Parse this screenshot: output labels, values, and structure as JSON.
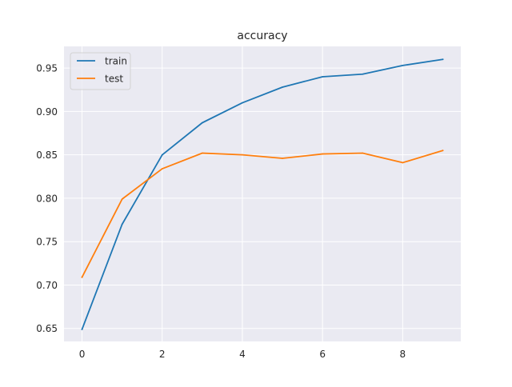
{
  "chart_data": {
    "type": "line",
    "title": "accuracy",
    "xlabel": "",
    "ylabel": "",
    "x": [
      0,
      1,
      2,
      3,
      4,
      5,
      6,
      7,
      8,
      9
    ],
    "xlim": [
      -0.45,
      9.45
    ],
    "ylim": [
      0.635,
      0.975
    ],
    "x_ticks": [
      0,
      2,
      4,
      6,
      8
    ],
    "x_tick_labels": [
      "0",
      "2",
      "4",
      "6",
      "8"
    ],
    "y_ticks": [
      0.65,
      0.7,
      0.75,
      0.8,
      0.85,
      0.9,
      0.95
    ],
    "y_tick_labels": [
      "0.65",
      "0.70",
      "0.75",
      "0.80",
      "0.85",
      "0.90",
      "0.95"
    ],
    "grid": true,
    "legend_position": "top-left",
    "background_color": "#eaeaf2",
    "series": [
      {
        "name": "train",
        "color": "#1f77b4",
        "values": [
          0.649,
          0.77,
          0.85,
          0.887,
          0.91,
          0.928,
          0.94,
          0.943,
          0.953,
          0.96
        ]
      },
      {
        "name": "test",
        "color": "#ff7f0e",
        "values": [
          0.709,
          0.799,
          0.834,
          0.852,
          0.85,
          0.846,
          0.851,
          0.852,
          0.841,
          0.855
        ]
      }
    ]
  }
}
